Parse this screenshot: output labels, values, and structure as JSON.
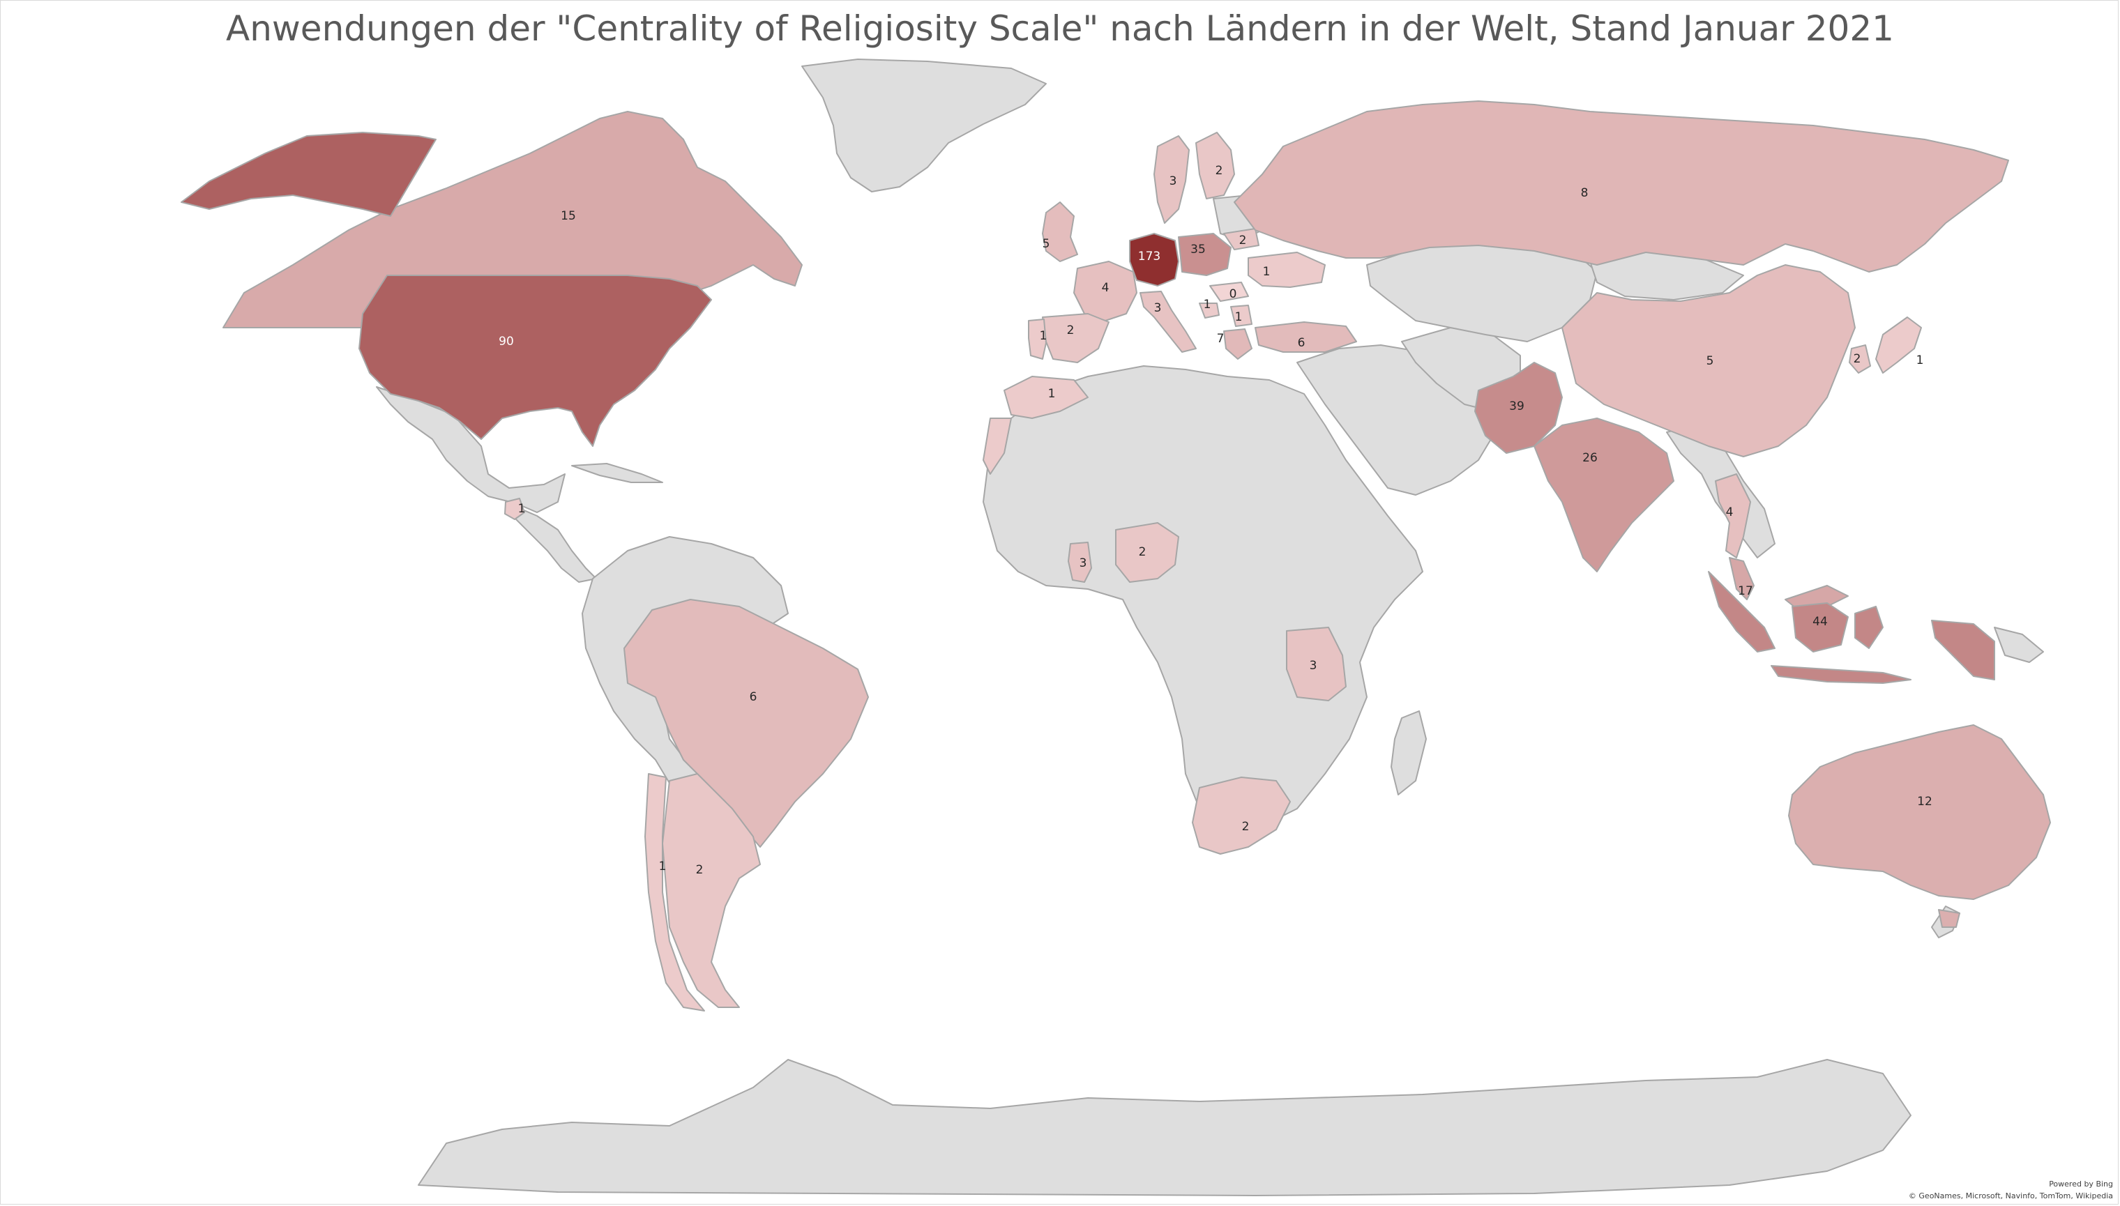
{
  "title": "Anwendungen der \"Centrality of Religiosity Scale\" nach Ländern in der Welt, Stand Januar 2021",
  "attribution": {
    "powered": "Powered by Bing",
    "credits": "© GeoNames, Microsoft, Navinfo, TomTom, Wikipedia"
  },
  "colors": {
    "no_data": "#dedede",
    "border": "#a6a6a6",
    "scale_low": "#f2d5d5",
    "scale_high": "#8f2f2f",
    "label_dark": "#262626",
    "label_light": "#ffffff"
  },
  "map_data": {
    "type": "choropleth",
    "value_name": "",
    "countries": [
      {
        "id": "germany",
        "value": 173
      },
      {
        "id": "usa",
        "value": 90
      },
      {
        "id": "indonesia",
        "value": 44
      },
      {
        "id": "pakistan",
        "value": 39
      },
      {
        "id": "poland",
        "value": 35
      },
      {
        "id": "india",
        "value": 26
      },
      {
        "id": "malaysia",
        "value": 17
      },
      {
        "id": "canada",
        "value": 15
      },
      {
        "id": "australia",
        "value": 12
      },
      {
        "id": "russia",
        "value": 8
      },
      {
        "id": "greece",
        "value": 7
      },
      {
        "id": "brazil",
        "value": 6
      },
      {
        "id": "turkey",
        "value": 6
      },
      {
        "id": "uk",
        "value": 5
      },
      {
        "id": "china",
        "value": 5
      },
      {
        "id": "france",
        "value": 4
      },
      {
        "id": "thailand",
        "value": 4
      },
      {
        "id": "sweden",
        "value": 3
      },
      {
        "id": "italy",
        "value": 3
      },
      {
        "id": "ghana",
        "value": 3
      },
      {
        "id": "tanzania",
        "value": 3
      },
      {
        "id": "finland",
        "value": 2
      },
      {
        "id": "lithuania",
        "value": 2
      },
      {
        "id": "spain",
        "value": 2
      },
      {
        "id": "nigeria",
        "value": 2
      },
      {
        "id": "south-africa",
        "value": 2
      },
      {
        "id": "argentina",
        "value": 2
      },
      {
        "id": "south-korea",
        "value": 2
      },
      {
        "id": "ukraine",
        "value": 1
      },
      {
        "id": "portugal",
        "value": 1
      },
      {
        "id": "morocco",
        "value": 1
      },
      {
        "id": "guatemala",
        "value": 1
      },
      {
        "id": "chile",
        "value": 1
      },
      {
        "id": "japan",
        "value": 1
      },
      {
        "id": "croatia",
        "value": 1
      },
      {
        "id": "serbia",
        "value": 1
      },
      {
        "id": "hungary",
        "value": 0
      }
    ]
  }
}
